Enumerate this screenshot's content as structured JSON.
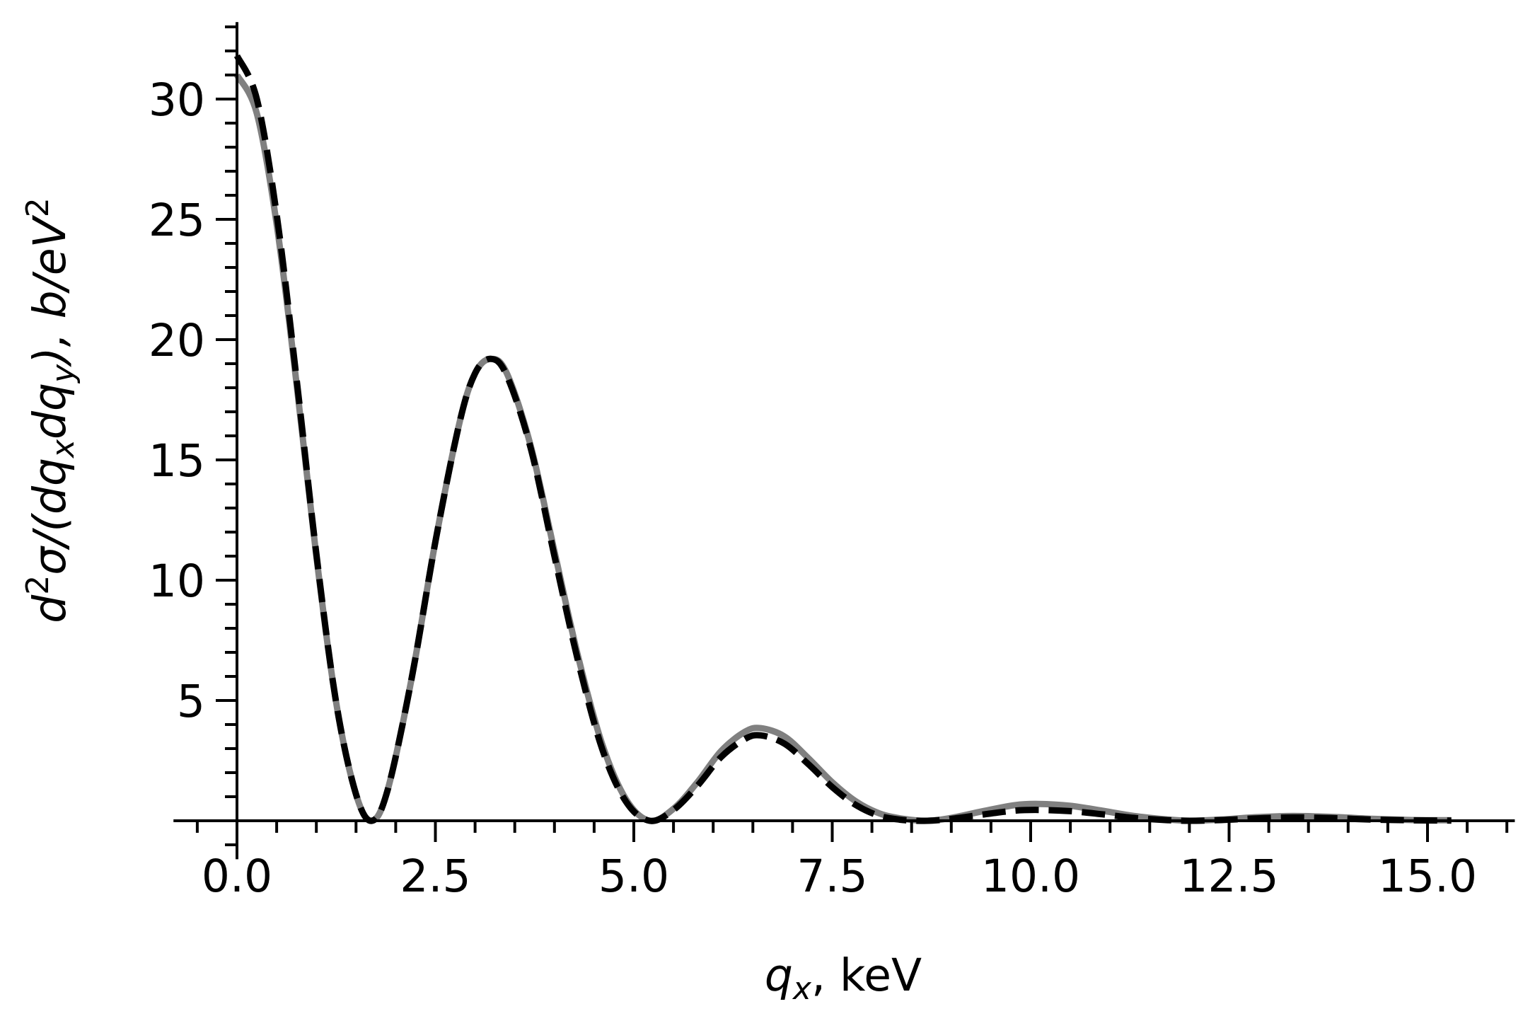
{
  "chart_data": {
    "type": "line",
    "title": "",
    "xlabel": "q_x, keV",
    "ylabel": "d²σ/(dq_x dq_y),  b/eV²",
    "xlim": [
      -0.8,
      16.1
    ],
    "ylim": [
      -1.6,
      33.2
    ],
    "grid": false,
    "legend": null,
    "x_ticks": [
      "0.0",
      "2.5",
      "5.0",
      "7.5",
      "10.0",
      "12.5",
      "15.0"
    ],
    "y_ticks": [
      "5",
      "10",
      "15",
      "20",
      "25",
      "30"
    ],
    "series": [
      {
        "name": "gray solid curve",
        "style": "solid",
        "color": "#808080",
        "x": [
          0.0,
          0.25,
          0.5,
          0.75,
          1.0,
          1.25,
          1.5,
          1.7,
          1.9,
          2.2,
          2.5,
          2.8,
          3.0,
          3.2,
          3.4,
          3.7,
          4.0,
          4.3,
          4.6,
          4.9,
          5.2,
          5.5,
          5.8,
          6.1,
          6.4,
          6.6,
          6.9,
          7.2,
          7.5,
          7.8,
          8.1,
          8.4,
          8.7,
          9.0,
          9.4,
          9.8,
          10.1,
          10.5,
          10.9,
          11.3,
          11.7,
          12.0,
          12.4,
          12.8,
          13.3,
          13.8,
          14.3,
          14.8,
          15.3
        ],
        "y": [
          31.0,
          29.4,
          24.8,
          18.2,
          11.0,
          4.9,
          1.1,
          0.0,
          1.3,
          5.9,
          11.6,
          16.5,
          18.6,
          19.2,
          18.6,
          15.6,
          11.2,
          6.8,
          3.2,
          0.9,
          0.0,
          0.5,
          1.6,
          2.9,
          3.7,
          3.85,
          3.5,
          2.6,
          1.6,
          0.8,
          0.3,
          0.08,
          0.0,
          0.12,
          0.4,
          0.65,
          0.7,
          0.62,
          0.42,
          0.2,
          0.06,
          0.0,
          0.05,
          0.14,
          0.2,
          0.16,
          0.08,
          0.03,
          0.02
        ]
      },
      {
        "name": "black dashed curve",
        "style": "dashed",
        "color": "#000000",
        "x": [
          0.0,
          0.25,
          0.5,
          0.75,
          1.0,
          1.25,
          1.5,
          1.7,
          1.9,
          2.2,
          2.5,
          2.8,
          3.0,
          3.2,
          3.4,
          3.7,
          4.0,
          4.3,
          4.6,
          4.9,
          5.2,
          5.5,
          5.8,
          6.1,
          6.4,
          6.6,
          6.9,
          7.2,
          7.5,
          7.8,
          8.1,
          8.4,
          8.7,
          9.0,
          9.4,
          9.8,
          10.1,
          10.5,
          10.9,
          11.3,
          11.7,
          12.0,
          12.4,
          12.8,
          13.3,
          13.8,
          14.3,
          14.8,
          15.3
        ],
        "y": [
          31.8,
          30.0,
          25.2,
          18.4,
          11.1,
          4.9,
          1.1,
          0.0,
          1.3,
          5.9,
          11.6,
          16.5,
          18.6,
          19.2,
          18.5,
          15.5,
          11.0,
          6.6,
          3.0,
          0.8,
          0.0,
          0.45,
          1.45,
          2.65,
          3.4,
          3.55,
          3.2,
          2.35,
          1.4,
          0.65,
          0.2,
          0.03,
          0.0,
          0.08,
          0.26,
          0.42,
          0.45,
          0.4,
          0.27,
          0.12,
          0.03,
          0.0,
          0.03,
          0.09,
          0.14,
          0.11,
          0.05,
          0.02,
          0.01
        ]
      }
    ]
  },
  "axes": {
    "xlabel_main": "q",
    "xlabel_sub": "x",
    "xlabel_unit": ", keV",
    "ylabel_parts": {
      "d": "d",
      "sup2": "2",
      "sigma": "σ/(dq",
      "subx": "x",
      "dq": "dq",
      "suby": "y",
      "close": "),  b/eV",
      "sup2b": "2"
    }
  }
}
